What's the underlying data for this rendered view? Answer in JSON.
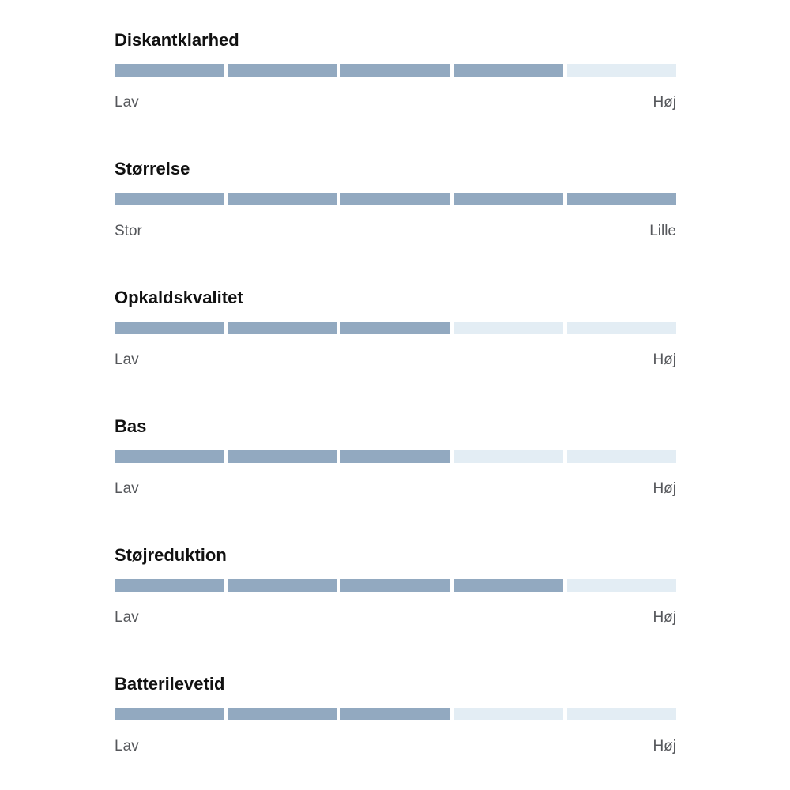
{
  "panel": {
    "sections": [
      {
        "title": "Diskantklarhed",
        "value": 4,
        "max": 5,
        "left_label": "Lav",
        "right_label": "Høj"
      },
      {
        "title": "Størrelse",
        "value": 5,
        "max": 5,
        "left_label": "Stor",
        "right_label": "Lille"
      },
      {
        "title": "Opkaldskvalitet",
        "value": 3,
        "max": 5,
        "left_label": "Lav",
        "right_label": "Høj"
      },
      {
        "title": "Bas",
        "value": 3,
        "max": 5,
        "left_label": "Lav",
        "right_label": "Høj"
      },
      {
        "title": "Støjreduktion",
        "value": 4,
        "max": 5,
        "left_label": "Lav",
        "right_label": "Høj"
      },
      {
        "title": "Batterilevetid",
        "value": 3,
        "max": 5,
        "left_label": "Lav",
        "right_label": "Høj"
      }
    ],
    "colors": {
      "segment_filled": "#92a9c0",
      "segment_empty": "#e3edf4",
      "title_text": "#111111",
      "scale_label_text": "#55575b"
    }
  },
  "chart_data": {
    "type": "bar",
    "categories": [
      "Diskantklarhed",
      "Størrelse",
      "Opkaldskvalitet",
      "Bas",
      "Støjreduktion",
      "Batterilevetid"
    ],
    "values": [
      4,
      5,
      3,
      3,
      4,
      3
    ],
    "value_range": [
      0,
      5
    ],
    "segments_per_bar": 5,
    "scale_endpoint_labels": [
      [
        "Lav",
        "Høj"
      ],
      [
        "Stor",
        "Lille"
      ],
      [
        "Lav",
        "Høj"
      ],
      [
        "Lav",
        "Høj"
      ],
      [
        "Lav",
        "Høj"
      ],
      [
        "Lav",
        "Høj"
      ]
    ],
    "title": "",
    "xlabel": "",
    "ylabel": "",
    "legend": "none",
    "grid": false,
    "notes": "Horizontal segmented rating indicators: each bar has 5 segments; filled segments = rating value."
  }
}
